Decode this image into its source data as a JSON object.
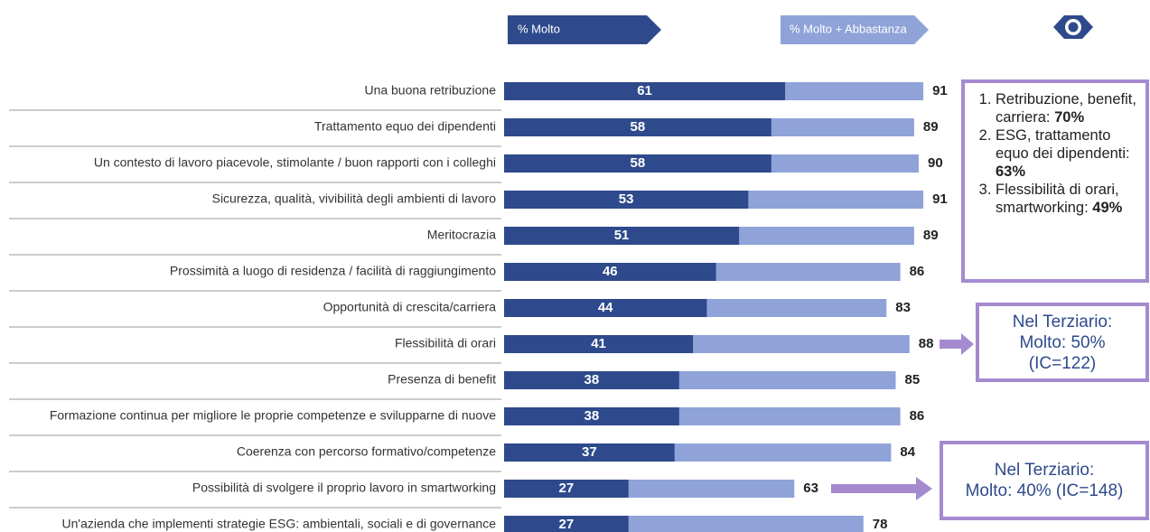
{
  "chart_data": {
    "type": "bar",
    "categories": [
      "Una buona retribuzione",
      "Trattamento equo dei dipendenti",
      "Un contesto di lavoro piacevole, stimolante / buon rapporti con i colleghi",
      "Sicurezza, qualità, vivibilità degli ambienti di lavoro",
      "Meritocrazia",
      "Prossimità a luogo di residenza / facilità di raggiungimento",
      "Opportunità di crescita/carriera",
      "Flessibilità di orari",
      "Presenza di benefit",
      "Formazione continua per migliore le proprie competenze e svilupparne di nuove",
      "Coerenza con percorso formativo/competenze",
      "Possibilità di svolgere il proprio lavoro in smartworking",
      "Un'azienda che implementi strategie ESG:  ambientali, sociali e di governance"
    ],
    "series": [
      {
        "name": "% Molto",
        "color": "#2e4a8c",
        "values": [
          61,
          58,
          58,
          53,
          51,
          46,
          44,
          41,
          38,
          38,
          37,
          27,
          27
        ]
      },
      {
        "name": "% Molto + Abbastanza",
        "color": "#8fa3d9",
        "values": [
          91,
          89,
          90,
          91,
          89,
          86,
          83,
          88,
          85,
          86,
          84,
          63,
          78
        ]
      }
    ],
    "xlim": [
      0,
      100
    ],
    "annotations": {
      "summary": [
        {
          "text": "Retribuzione, benefit, carriera:",
          "bold": "70%"
        },
        {
          "text": "ESG, trattamento equo dei dipendenti:",
          "bold": "63%"
        },
        {
          "text": "Flessibilità di orari, smartworking:",
          "bold": "49%"
        }
      ],
      "flessibilita": [
        "Nel Terziario:",
        "Molto: 50%",
        "(IC=122)"
      ],
      "smartworking": [
        "Nel Terziario:",
        "Molto: 40% (IC=148)"
      ]
    }
  }
}
